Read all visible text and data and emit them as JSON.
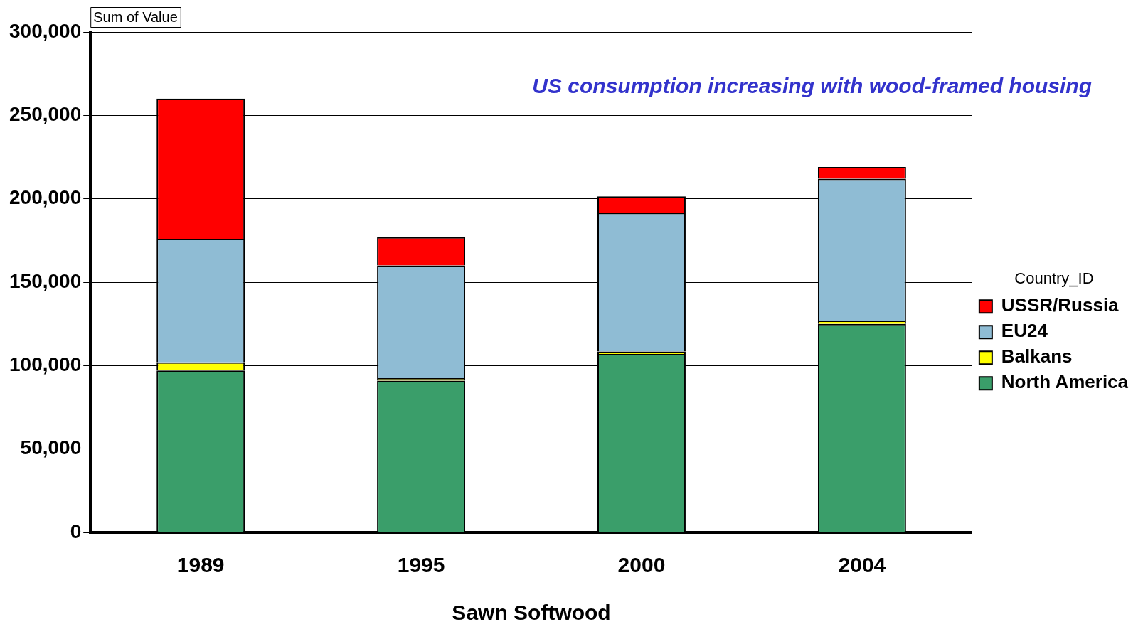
{
  "chart_data": {
    "type": "bar",
    "stacked": true,
    "xlabel": "Sawn Softwood",
    "legend_title": "Country_ID",
    "legend": "right",
    "categories": [
      "1989",
      "1995",
      "2000",
      "2004"
    ],
    "series": [
      {
        "name": "North America",
        "color": "#3a9e6a",
        "values": [
          97000,
          91000,
          107000,
          125000
        ]
      },
      {
        "name": "Balkans",
        "color": "#ffff00",
        "values": [
          5000,
          1500,
          1500,
          2000
        ]
      },
      {
        "name": "EU24",
        "color": "#8fbcd4",
        "values": [
          74000,
          67500,
          83000,
          85000
        ]
      },
      {
        "name": "USSR/Russia",
        "color": "#ff0000",
        "values": [
          84000,
          17000,
          10000,
          7000
        ]
      }
    ],
    "ylim": [
      0,
      300000
    ],
    "yticks": [
      0,
      {
        "value": 50000,
        "label": "50,000"
      },
      {
        "value": 100000,
        "label": "100,000"
      },
      {
        "value": 150000,
        "label": "150,000"
      },
      {
        "value": 200000,
        "label": "200,000"
      },
      {
        "value": 250000,
        "label": "250,000"
      },
      {
        "value": 300000,
        "label": "300,000"
      }
    ],
    "grid": "y",
    "annotations": [
      "Sum of Value",
      "US consumption increasing with wood-framed housing"
    ]
  }
}
